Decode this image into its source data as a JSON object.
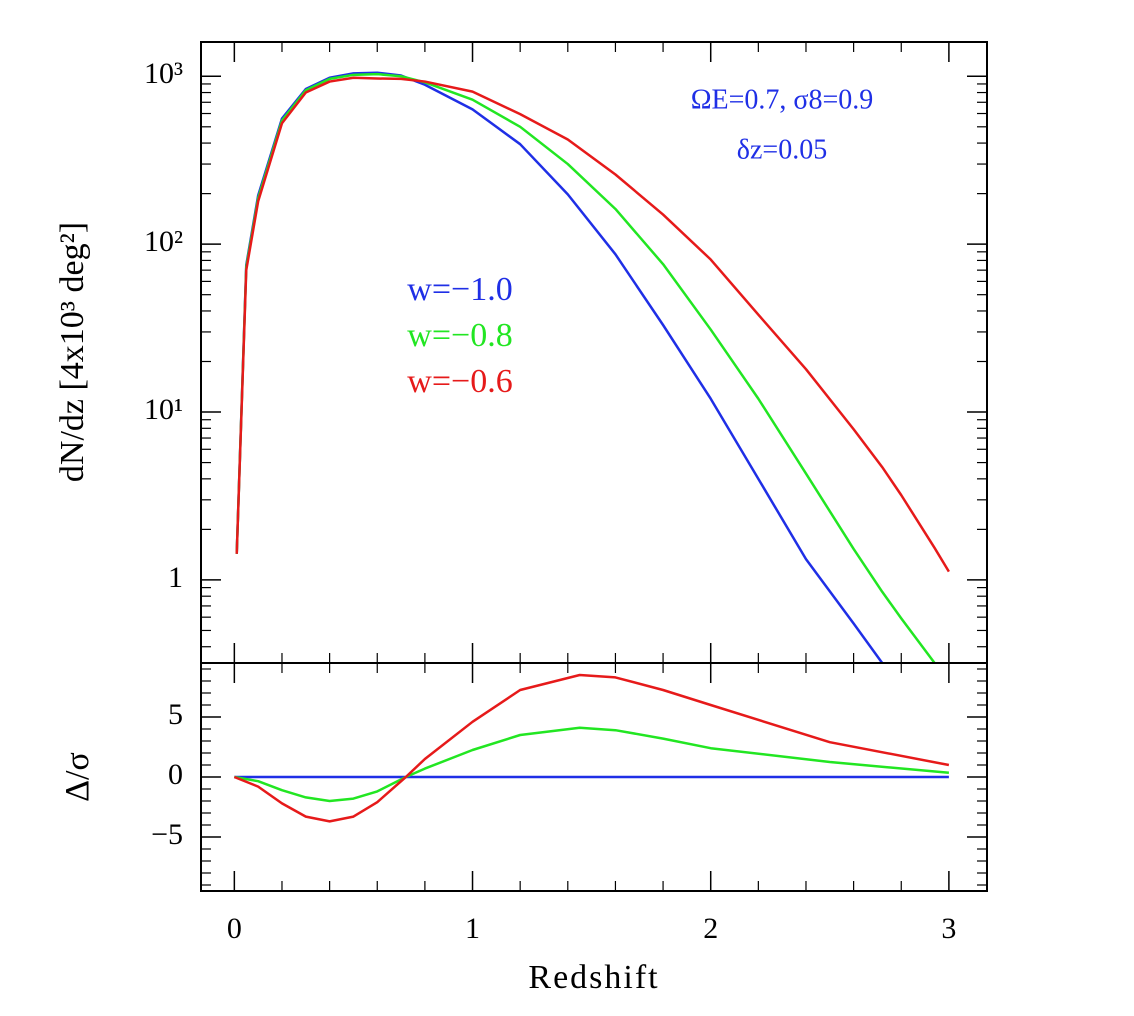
{
  "chart_data": [
    {
      "type": "line",
      "ylabel": "dN/dz [4x10³ deg²]",
      "x": [
        0.01,
        0.05,
        0.1,
        0.2,
        0.3,
        0.4,
        0.5,
        0.6,
        0.7,
        0.8,
        1.0,
        1.2,
        1.4,
        1.6,
        1.8,
        2.0,
        2.2,
        2.4,
        2.6,
        2.72,
        2.8,
        2.94,
        3.0
      ],
      "series": [
        {
          "name": "w=−1.0",
          "color": "#1f2fe6",
          "values": [
            1.43,
            75,
            195,
            560,
            840,
            980,
            1040,
            1050,
            1010,
            890,
            635,
            394,
            198,
            87,
            33,
            12,
            4.0,
            1.33,
            0.55,
            0.32,
            null,
            null,
            null
          ]
        },
        {
          "name": "w=−0.8",
          "color": "#22e622",
          "values": [
            1.43,
            73,
            188,
            545,
            825,
            965,
            1020,
            1030,
            1000,
            920,
            725,
            500,
            300,
            162,
            76,
            31,
            12,
            4.3,
            1.53,
            0.85,
            0.59,
            0.32,
            null
          ]
        },
        {
          "name": "w=−0.6",
          "color": "#e61a1a",
          "values": [
            1.43,
            70,
            180,
            525,
            800,
            930,
            980,
            970,
            965,
            930,
            810,
            595,
            420,
            260,
            150,
            81,
            38,
            18,
            7.9,
            4.7,
            3.2,
            1.55,
            1.12
          ]
        }
      ],
      "annotations": [
        "ΩE=0.7,  σ8=0.9",
        "δz=0.05"
      ],
      "xlim": [
        -0.14,
        3.16
      ],
      "xminorticks": [
        0.2,
        0.4,
        0.6,
        0.8,
        1.2,
        1.4,
        1.6,
        1.8,
        2.2,
        2.4,
        2.6,
        2.8
      ],
      "ylim": [
        0.32,
        1600
      ],
      "ylog": true,
      "yticks": [
        1,
        {
          "value": 10,
          "label": "10¹"
        },
        {
          "value": 100,
          "label": "10²"
        },
        {
          "value": 1000,
          "label": "10³"
        }
      ],
      "yminorticks": [
        0.4,
        0.5,
        0.6,
        0.7,
        0.8,
        0.9,
        2,
        3,
        4,
        5,
        6,
        7,
        8,
        9,
        20,
        30,
        40,
        50,
        60,
        70,
        80,
        90,
        200,
        300,
        400,
        500,
        600,
        700,
        800,
        900
      ]
    },
    {
      "type": "line",
      "xlabel": "Redshift",
      "ylabel": "Δ/σ",
      "x": [
        0,
        0.1,
        0.2,
        0.3,
        0.4,
        0.5,
        0.6,
        0.72,
        0.8,
        1.0,
        1.2,
        1.45,
        1.6,
        1.8,
        2.0,
        2.5,
        3.0
      ],
      "series": [
        {
          "color": "#1f2fe6",
          "values": [
            0,
            0,
            0,
            0,
            0,
            0,
            0,
            0,
            0,
            0,
            0,
            0,
            0,
            0,
            0,
            0,
            0
          ]
        },
        {
          "color": "#22e622",
          "values": [
            0,
            -0.35,
            -1.1,
            -1.7,
            -2.0,
            -1.8,
            -1.2,
            0,
            0.7,
            2.25,
            3.5,
            4.1,
            3.9,
            3.2,
            2.4,
            1.25,
            0.35
          ]
        },
        {
          "color": "#e61a1a",
          "values": [
            0,
            -0.8,
            -2.2,
            -3.3,
            -3.7,
            -3.3,
            -2.1,
            0,
            1.5,
            4.6,
            7.25,
            8.5,
            8.3,
            7.25,
            6.0,
            2.9,
            1.0
          ]
        }
      ],
      "xlim": [
        -0.14,
        3.16
      ],
      "xticks": [
        0,
        1,
        2,
        3
      ],
      "xminorticks": [
        0.2,
        0.4,
        0.6,
        0.8,
        1.2,
        1.4,
        1.6,
        1.8,
        2.2,
        2.4,
        2.6,
        2.8
      ],
      "ylim": [
        -9.5,
        9.5
      ],
      "yticks": [
        {
          "value": -5,
          "label": "−5"
        },
        0,
        5
      ],
      "yminorticks": [
        -9,
        -8,
        -7,
        -6,
        -4,
        -3,
        -2,
        -1,
        1,
        2,
        3,
        4,
        6,
        7,
        8,
        9
      ]
    }
  ]
}
